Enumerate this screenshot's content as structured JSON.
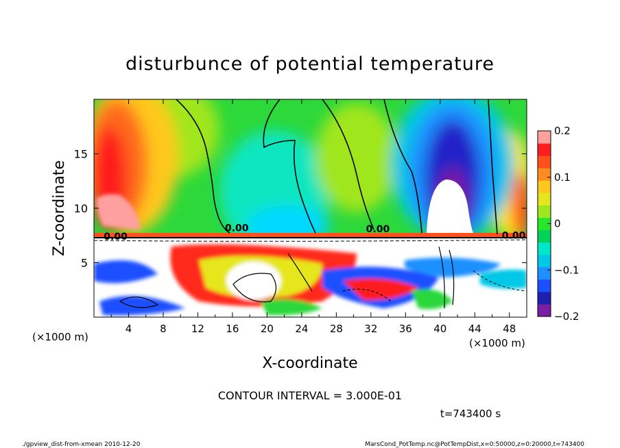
{
  "chart_data": {
    "type": "heatmap",
    "title": "disturbunce of potential temperature",
    "xlabel": "X-coordinate",
    "ylabel": "Z-coordinate",
    "x_scale_left": "(×1000 m)",
    "x_scale_right": "(×1000 m)",
    "xlim": [
      0,
      50
    ],
    "ylim": [
      0,
      20
    ],
    "xticks": [
      4,
      8,
      12,
      16,
      20,
      24,
      28,
      32,
      36,
      40,
      44,
      48
    ],
    "yticks": [
      5,
      10,
      15
    ],
    "colorbar": {
      "range": [
        -0.2,
        0.2
      ],
      "ticks": [
        {
          "value": 0.2,
          "label": "0.2"
        },
        {
          "value": 0.1,
          "label": "0.1"
        },
        {
          "value": 0.0,
          "label": "0"
        },
        {
          "value": -0.1,
          "label": "−0.1"
        },
        {
          "value": -0.2,
          "label": "−0.2"
        }
      ],
      "colors": [
        "#7a1fa2",
        "#2020b0",
        "#1e4fff",
        "#1e90ff",
        "#00c8e6",
        "#00e6c8",
        "#00d25a",
        "#28e628",
        "#a0e61e",
        "#e6e61e",
        "#ffc81e",
        "#ff8c1e",
        "#ff501e",
        "#ff1e1e",
        "#ffa0a0"
      ]
    },
    "contour_interval_label": "CONTOUR INTERVAL = 3.000E-01",
    "contour_labels": [
      {
        "text": "0.00",
        "x": 16.5,
        "y": 7.9
      },
      {
        "text": "0.00",
        "x": 32.8,
        "y": 7.8
      },
      {
        "text": "0.00",
        "x": 48.5,
        "y": 7.2
      },
      {
        "text": "0.00",
        "x": 2.5,
        "y": 7.1
      }
    ],
    "time_label": "t=743400 s"
  },
  "footer": {
    "left": "./gpview_dist-from-xmean  2010-12-20",
    "right": "MarsCond_PotTemp.nc@PotTempDist,x=0:50000,z=0:20000,t=743400"
  }
}
